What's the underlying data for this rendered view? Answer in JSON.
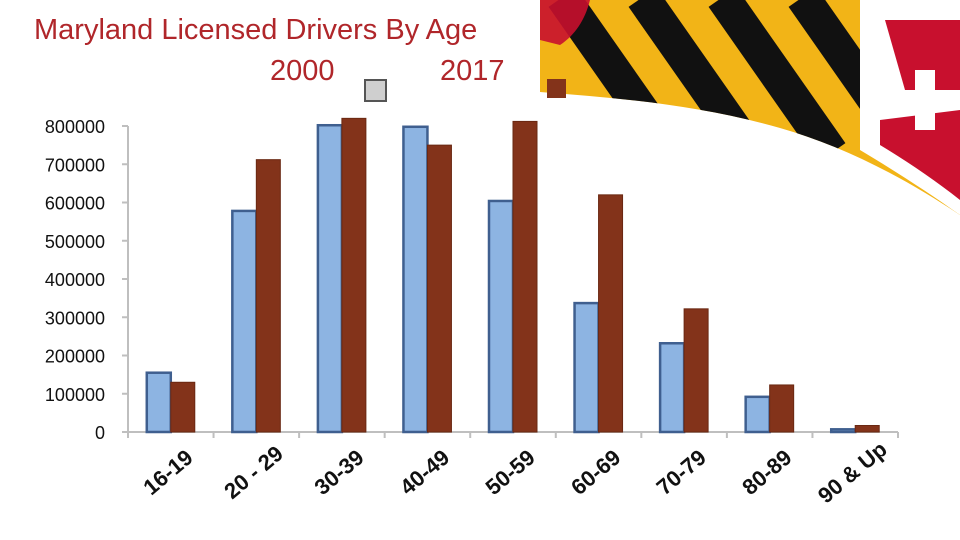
{
  "chart_data": {
    "type": "bar",
    "title": "Maryland Licensed Drivers By Age",
    "categories": [
      "16-19",
      "20 - 29",
      "30-39",
      "40-49",
      "50-59",
      "60-69",
      "70-79",
      "80-89",
      "90 & Up"
    ],
    "series": [
      {
        "name": "2000",
        "color": "#8db4e2",
        "edge": "#3f5f8f",
        "values": [
          155000,
          578000,
          802000,
          798000,
          604000,
          337000,
          232000,
          92000,
          7000
        ]
      },
      {
        "name": "2017",
        "color": "#83331a",
        "edge": "#6a2812",
        "values": [
          130000,
          712000,
          820000,
          750000,
          812000,
          620000,
          322000,
          123000,
          17000
        ]
      }
    ],
    "ylim": [
      0,
      800000
    ],
    "yticks": [
      0,
      100000,
      200000,
      300000,
      400000,
      500000,
      600000,
      700000,
      800000
    ],
    "xlabel": "",
    "ylabel": "",
    "grid": false,
    "legend_placement": "top-center"
  },
  "legend_swatch_colors": {
    "2000": "#cfcfcf",
    "2017": "#83331a"
  },
  "theme": {
    "title_color": "#b0262a",
    "flag_gold": "#f2b417",
    "flag_black": "#111111",
    "flag_red": "#c8102e"
  }
}
